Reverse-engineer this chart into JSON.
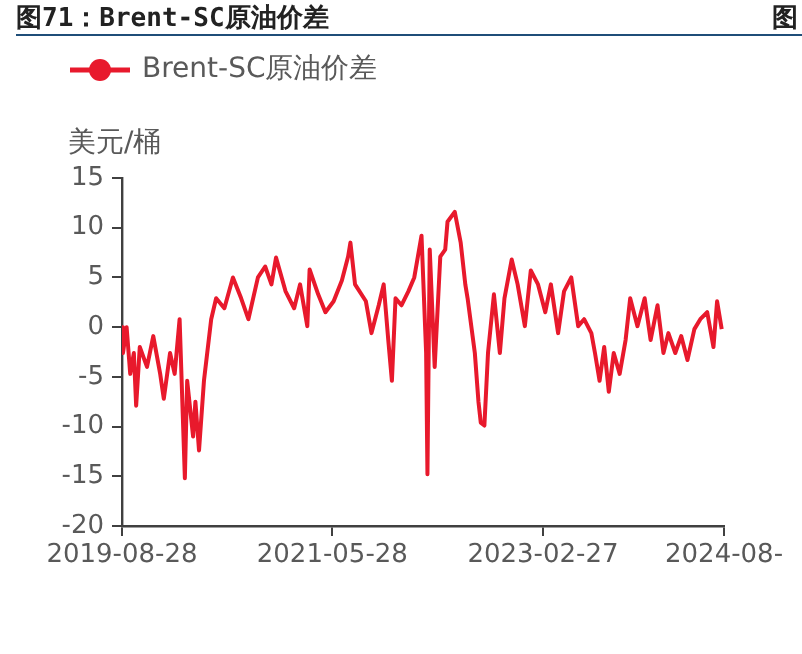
{
  "chart_data": {
    "type": "line",
    "title": "图71：Brent-SC原油价差",
    "ylabel": "美元/桶",
    "annotations": [
      "图"
    ],
    "legend": "top left",
    "marker": "none",
    "grid": false,
    "xlim": [
      "2019-08-28",
      "2024-08-30"
    ],
    "xticks": [
      "2019-08-28",
      "2021-05-28",
      "2023-02-27",
      {
        "value": "2024-08-30",
        "label": "2024-08-"
      }
    ],
    "ylim": [
      -20,
      15
    ],
    "yticks": [
      -20,
      -15,
      -10,
      -5,
      0,
      5,
      10,
      15
    ],
    "series": [
      {
        "name": "Brent-SC原油价差",
        "color": "#e8192c",
        "x": [
          "2019-08-28",
          "2019-08-31",
          "2019-09-11",
          "2019-09-22",
          "2019-10-03",
          "2019-10-10",
          "2019-10-21",
          "2019-11-12",
          "2019-12-01",
          "2019-12-22",
          "2020-01-02",
          "2020-01-21",
          "2020-02-04",
          "2020-02-19",
          "2020-03-06",
          "2020-03-13",
          "2020-03-31",
          "2020-04-07",
          "2020-04-18",
          "2020-05-03",
          "2020-05-25",
          "2020-06-09",
          "2020-07-04",
          "2020-07-30",
          "2020-08-24",
          "2020-09-15",
          "2020-10-14",
          "2020-11-05",
          "2020-11-24",
          "2020-12-08",
          "2021-01-06",
          "2021-02-01",
          "2021-02-19",
          "2021-03-13",
          "2021-03-20",
          "2021-04-15",
          "2021-05-07",
          "2021-06-01",
          "2021-06-26",
          "2021-07-15",
          "2021-07-22",
          "2021-08-05",
          "2021-09-07",
          "2021-09-24",
          "2021-10-16",
          "2021-10-31",
          "2021-11-14",
          "2021-11-25",
          "2021-12-06",
          "2021-12-24",
          "2022-01-14",
          "2022-02-01",
          "2022-02-23",
          "2022-03-09",
          "2022-03-13",
          "2022-03-20",
          "2022-04-04",
          "2022-04-21",
          "2022-05-06",
          "2022-05-13",
          "2022-06-04",
          "2022-06-22",
          "2022-07-06",
          "2022-07-13",
          "2022-08-04",
          "2022-08-15",
          "2022-08-22",
          "2022-09-02",
          "2022-09-13",
          "2022-10-01",
          "2022-10-19",
          "2022-11-02",
          "2022-11-24",
          "2022-12-12",
          "2023-01-03",
          "2023-01-21",
          "2023-02-12",
          "2023-03-06",
          "2023-03-23",
          "2023-04-14",
          "2023-05-02",
          "2023-05-24",
          "2023-06-14",
          "2023-07-02",
          "2023-07-24",
          "2023-08-04",
          "2023-08-18",
          "2023-09-01",
          "2023-09-15",
          "2023-09-30",
          "2023-10-18",
          "2023-11-05",
          "2023-11-19",
          "2023-12-11",
          "2024-01-02",
          "2024-01-20",
          "2024-02-10",
          "2024-02-28",
          "2024-03-14",
          "2024-04-04",
          "2024-04-22",
          "2024-05-11",
          "2024-06-01",
          "2024-06-19",
          "2024-07-10",
          "2024-07-29",
          "2024-08-09",
          "2024-08-23"
        ],
        "values": [
          0,
          -2.6,
          0,
          -4.7,
          -2.6,
          -7.9,
          -2,
          -4,
          -0.9,
          -4.7,
          -7.2,
          -2.6,
          -4.7,
          0.8,
          -15.2,
          -5.4,
          -11,
          -7.5,
          -12.4,
          -5.4,
          0.8,
          2.9,
          1.9,
          5,
          2.9,
          0.8,
          5,
          6.1,
          4.3,
          7,
          3.6,
          1.9,
          4.3,
          0.1,
          5.8,
          3.3,
          1.5,
          2.6,
          4.7,
          7.1,
          8.5,
          4.3,
          2.6,
          -0.6,
          2.2,
          4.3,
          -1.3,
          -5.4,
          2.9,
          2.2,
          3.6,
          5,
          9.2,
          -2.6,
          -14.8,
          7.8,
          -4,
          7.1,
          7.8,
          10.6,
          11.6,
          8.5,
          4.3,
          2.9,
          -2.6,
          -7.5,
          -9.6,
          -9.9,
          -2.6,
          3.3,
          -2.6,
          2.9,
          6.8,
          4.3,
          0.1,
          5.7,
          4.3,
          1.5,
          4.3,
          -0.6,
          3.6,
          5,
          0.1,
          0.8,
          -0.6,
          -2.6,
          -5.4,
          -2,
          -6.5,
          -2.6,
          -4.7,
          -1.3,
          2.9,
          0.1,
          2.9,
          -1.3,
          2.2,
          -2.6,
          -0.6,
          -2.6,
          -0.9,
          -3.3,
          -0.2,
          0.8,
          1.5,
          -2,
          2.6,
          -0.2
        ]
      }
    ]
  }
}
